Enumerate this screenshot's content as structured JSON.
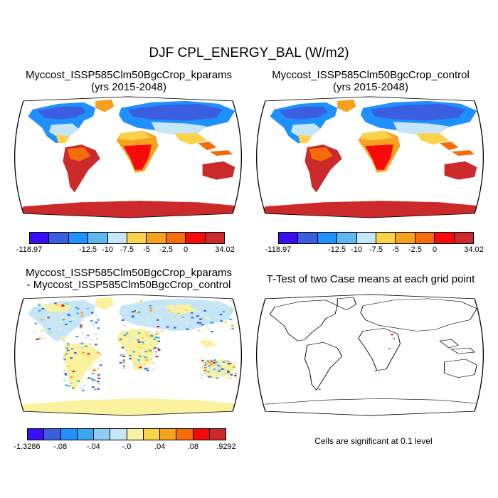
{
  "title": "DJF CPL_ENERGY_BAL (W/m2)",
  "panels": [
    {
      "id": "kparams",
      "title_line1": "Myccost_ISSP585Clm50BgcCrop_kparams",
      "title_line2": "(yrs 2015-2048)"
    },
    {
      "id": "control",
      "title_line1": "Myccost_ISSP585Clm50BgcCrop_control",
      "title_line2": "(yrs 2015-2048)"
    },
    {
      "id": "diff",
      "title_line1": "Myccost_ISSP585Clm50BgcCrop_kparams",
      "title_line2": "- Myccost_ISSP585Clm50BgcCrop_control"
    },
    {
      "id": "ttest",
      "title_line1": "T-Test of two Case means at each grid point",
      "title_line2": ""
    }
  ],
  "colorbar_abs": {
    "colors": [
      "#3a0df2",
      "#3b5ee0",
      "#1e90ff",
      "#5cb8ee",
      "#c4e6f8",
      "#fbd24a",
      "#f7a21d",
      "#f56d0a",
      "#f60a0a",
      "#cc2a2a"
    ],
    "labels": [
      "-118.97",
      "-12.5",
      "-10",
      "-7.5",
      "-5",
      "-2.5",
      "0",
      "34.02"
    ]
  },
  "colorbar_diff": {
    "colors": [
      "#3a0df2",
      "#3b5ee0",
      "#1e90ff",
      "#39a7f0",
      "#8ccdf5",
      "#c4e6f8",
      "#fbf2a0",
      "#fbd24a",
      "#f7a21d",
      "#f56d0a",
      "#f60a0a",
      "#cc2a2a"
    ],
    "labels": [
      "-1.3286",
      "-.08",
      "-.04",
      "-.0",
      ".04",
      ".08",
      ".9292"
    ]
  },
  "significance_note": "Cells are significant at 0.1 level"
}
